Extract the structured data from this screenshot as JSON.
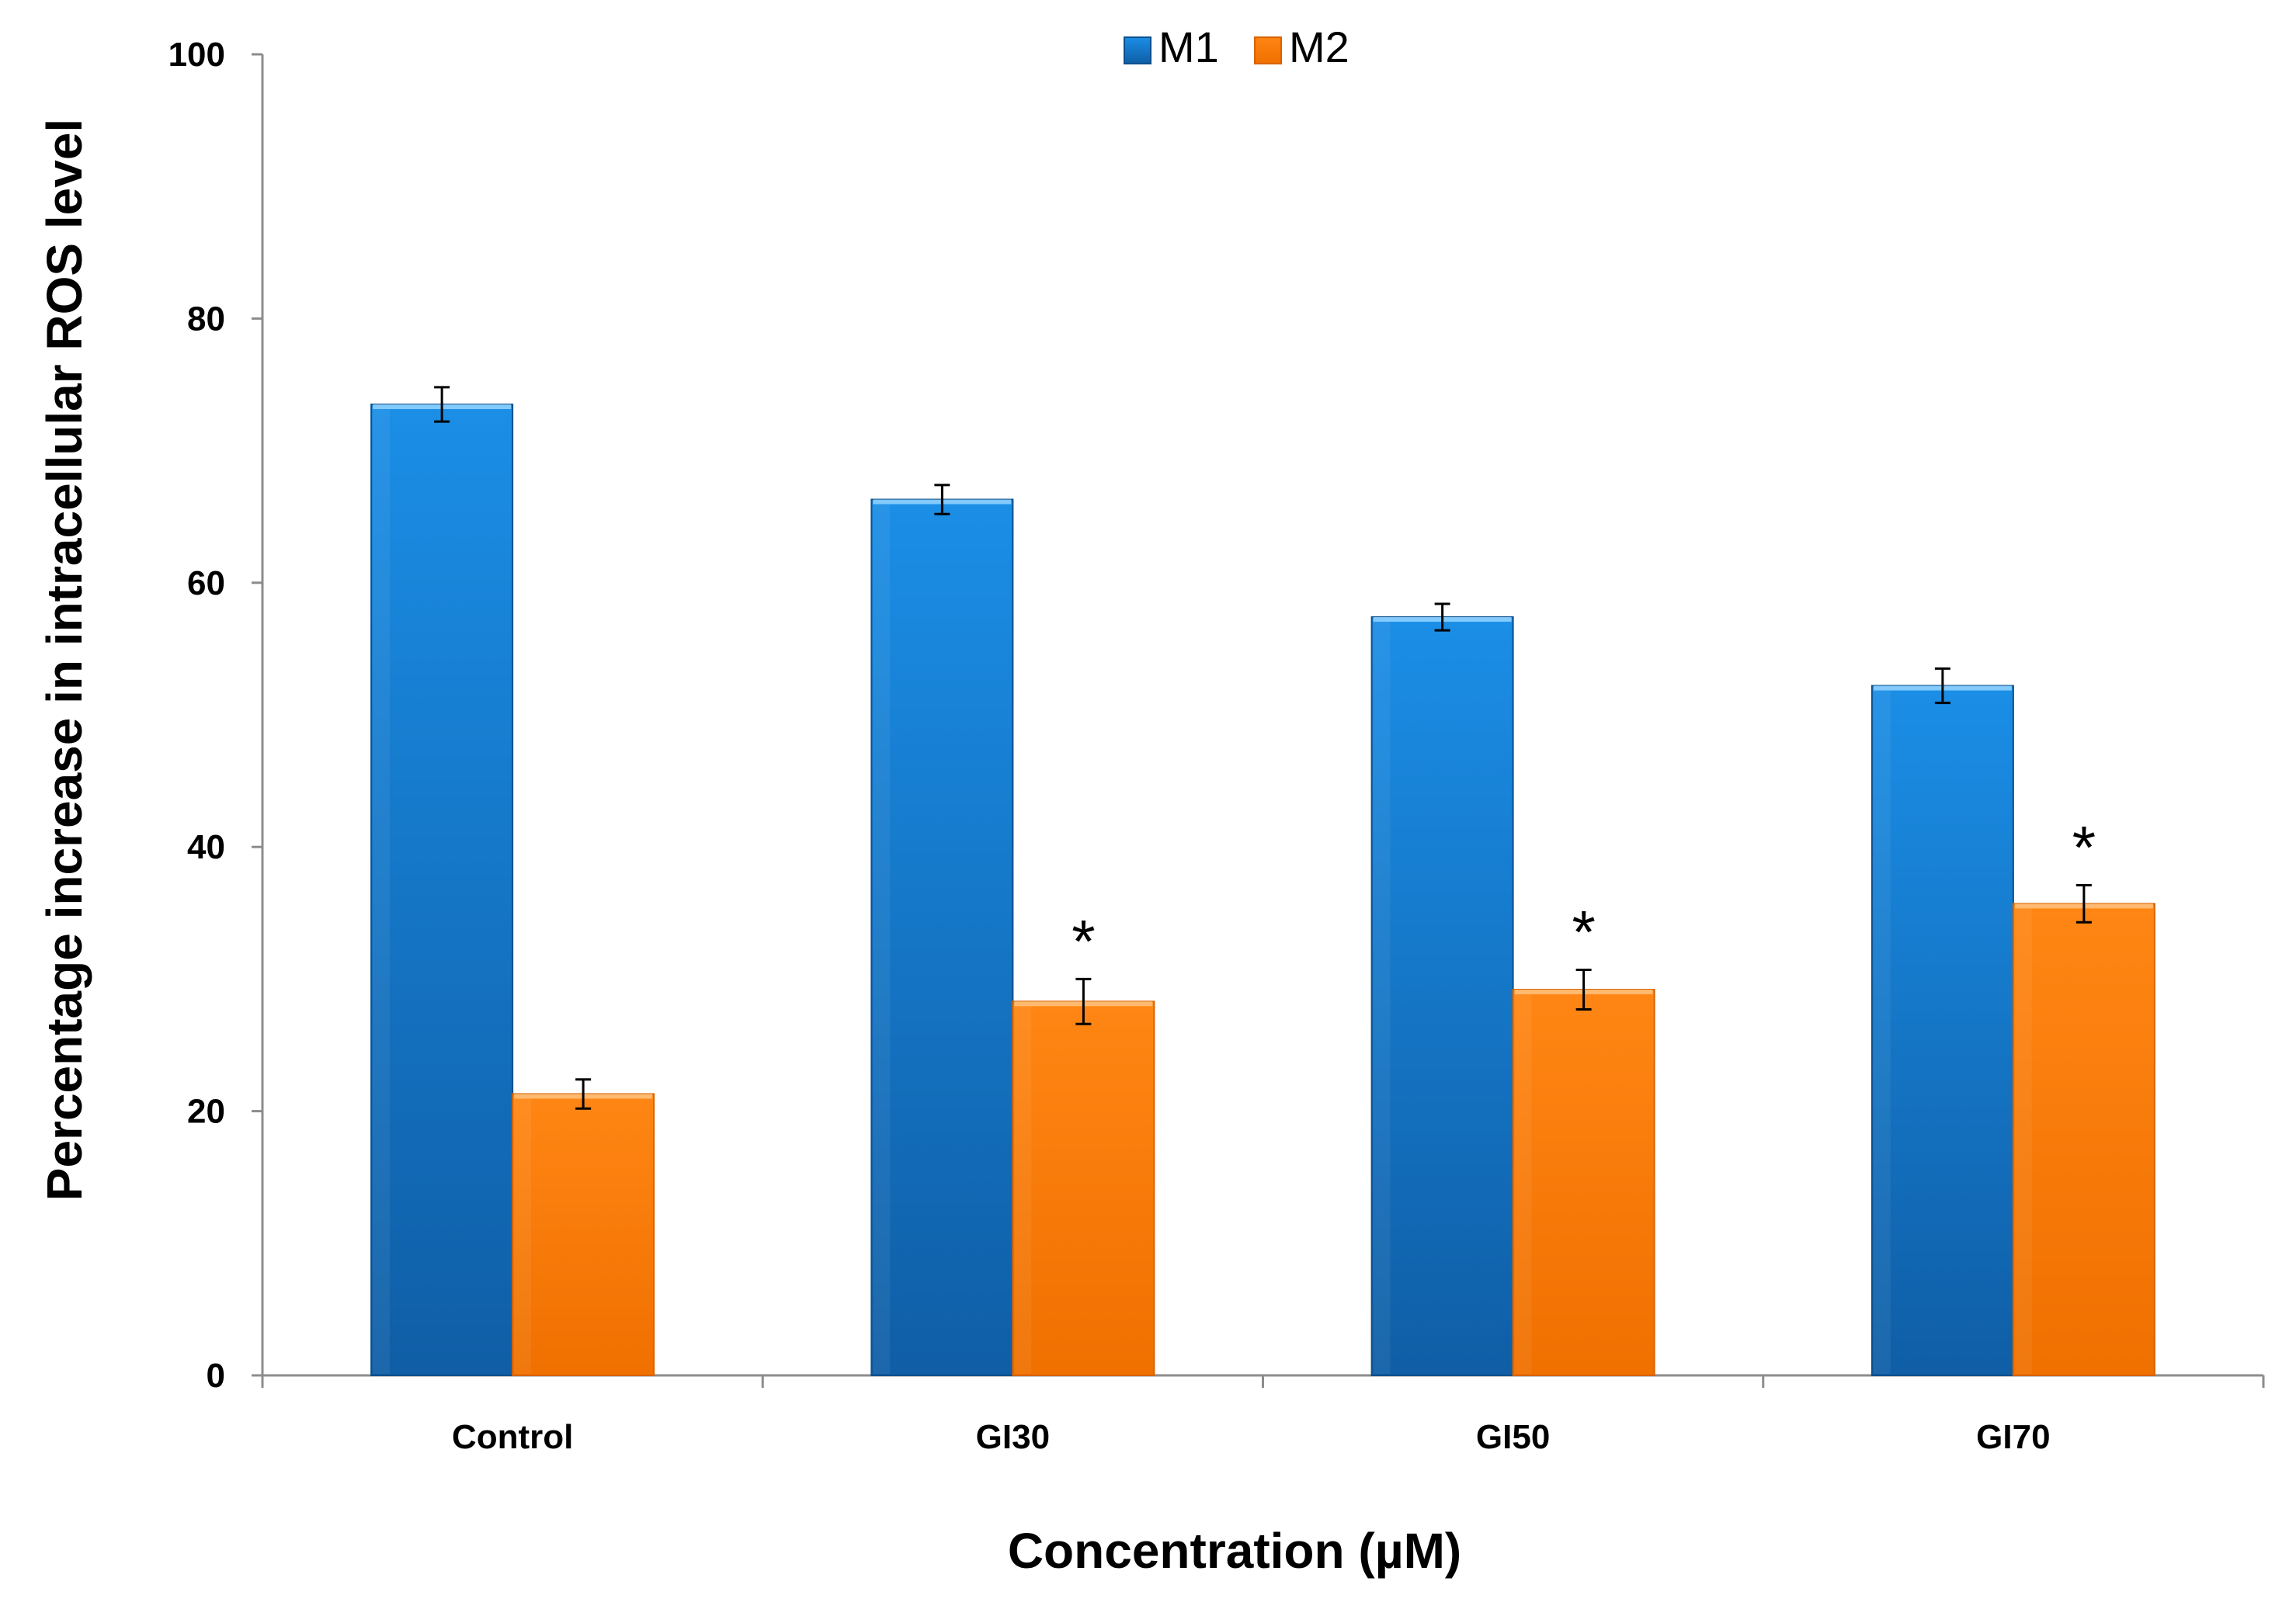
{
  "chart_data": {
    "type": "bar",
    "title": "",
    "xlabel": "Concentration (µM)",
    "ylabel": "Percentage increase in intracellular ROS level",
    "categories": [
      "Control",
      "GI30",
      "GI50",
      "GI70"
    ],
    "series": [
      {
        "name": "M1",
        "color": "#1a82d8",
        "values": [
          73.5,
          66.3,
          57.4,
          52.2
        ],
        "errors": [
          1.3,
          1.1,
          1.0,
          1.3
        ]
      },
      {
        "name": "M2",
        "color": "#ff7a00",
        "values": [
          21.3,
          28.3,
          29.2,
          35.7
        ],
        "errors": [
          1.1,
          1.7,
          1.5,
          1.4
        ]
      }
    ],
    "annotations": [
      {
        "category": "GI30",
        "series": "M2",
        "text": "*"
      },
      {
        "category": "GI50",
        "series": "M2",
        "text": "*"
      },
      {
        "category": "GI70",
        "series": "M2",
        "text": "*"
      }
    ],
    "ylim": [
      0,
      100
    ],
    "yticks": [
      0,
      20,
      40,
      60,
      80,
      100
    ],
    "grid": false,
    "legend_position": "top-center"
  }
}
